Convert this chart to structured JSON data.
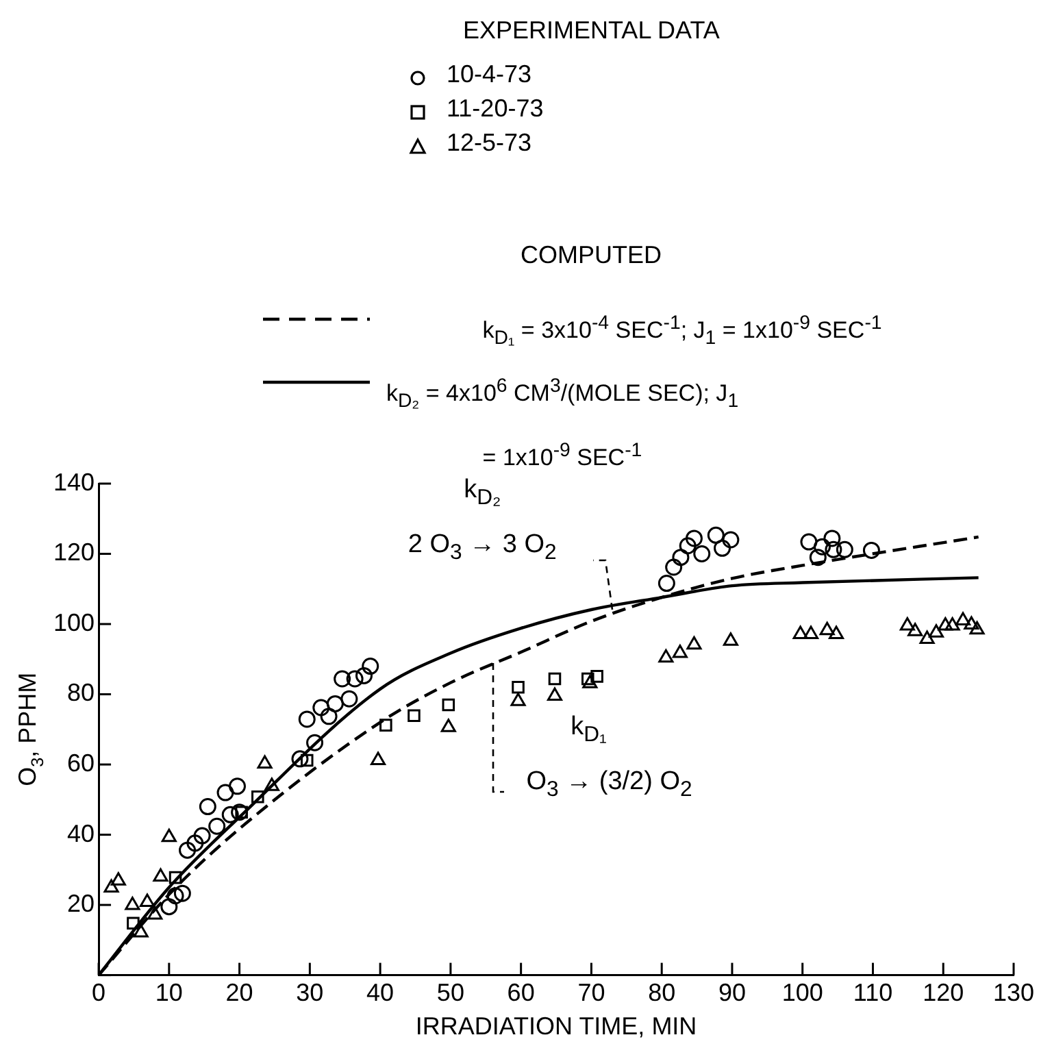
{
  "chart_data": {
    "type": "scatter",
    "legend_title": "EXPERIMENTAL DATA",
    "legend": "top",
    "grid": false,
    "xlabel": "IRRADIATION TIME, MIN",
    "ylabel": "O$_{3}$, PPHM",
    "xlim": [
      0,
      130
    ],
    "xticks": [
      0,
      10,
      20,
      30,
      40,
      50,
      60,
      70,
      80,
      90,
      100,
      110,
      120,
      130
    ],
    "ylim": [
      0,
      140
    ],
    "yticks": [
      {
        "value": 0,
        "label": null
      },
      20,
      40,
      60,
      80,
      100,
      120,
      140
    ],
    "annotations": [
      "COMPUTED",
      "k$_{D₂}$",
      {
        "text": "2 O$_{3}$ → 3 O$_{2}$",
        "x": 73,
        "y": 104
      },
      "k$_{D₁}$",
      {
        "text": "O$_{3}$ → (3/2) O$_{2}$",
        "x": 56,
        "y": 89
      }
    ],
    "series": [
      {
        "name": "10-4-73",
        "type": "scatter",
        "marker": "circle",
        "color": "#000000",
        "x": [
          10,
          10.9,
          11.9,
          12.6,
          13.7,
          14.7,
          15.5,
          16.8,
          18,
          19.7,
          18.7,
          20,
          28.6,
          30.7,
          29.6,
          31.6,
          32.7,
          33.6,
          35.6,
          34.6,
          36.4,
          37.7,
          38.6,
          80.7,
          81.7,
          82.7,
          83.7,
          84.6,
          85.7,
          87.7,
          88.6,
          89.8,
          100.9,
          102.2,
          102.8,
          104.2,
          104.4,
          106,
          109.8
        ],
        "values": [
          19.5,
          22.6,
          23.3,
          35.6,
          37.6,
          39.7,
          48,
          42.4,
          52,
          53.8,
          45.7,
          46.4,
          61.6,
          66.2,
          72.9,
          76.2,
          73.7,
          77.3,
          78.7,
          84.4,
          84.4,
          85.3,
          88,
          111.6,
          116.2,
          119,
          122.3,
          124.4,
          120,
          125.3,
          121.6,
          124,
          123.4,
          119,
          122,
          124.4,
          121.2,
          121.2,
          121
        ]
      },
      {
        "name": "11-20-73",
        "type": "scatter",
        "marker": "square",
        "color": "#000000",
        "x": [
          4.9,
          10.9,
          20.3,
          22.6,
          29.6,
          40.8,
          44.8,
          49.7,
          59.6,
          64.8,
          69.5,
          70.8
        ],
        "values": [
          14.8,
          27.8,
          46.4,
          50.8,
          61.2,
          71.2,
          73.9,
          77,
          82,
          84.4,
          84.4,
          85.1
        ]
      },
      {
        "name": "12-5-73",
        "type": "scatter",
        "marker": "triangle",
        "color": "#000000",
        "x": [
          1.8,
          2.8,
          4.8,
          6,
          6.9,
          8,
          8.8,
          10,
          23.6,
          24.6,
          39.7,
          49.7,
          59.6,
          64.8,
          69.8,
          80.6,
          82.6,
          84.6,
          89.8,
          99.7,
          101.2,
          103.5,
          104.8,
          114.9,
          116,
          117.7,
          119,
          120.3,
          121.3,
          122.8,
          124,
          124.8
        ],
        "values": [
          24.9,
          26.9,
          19.9,
          12.1,
          20.8,
          17.2,
          28,
          39.3,
          60.2,
          53.8,
          61.2,
          70.6,
          78,
          79.5,
          83.1,
          90.4,
          91.7,
          94.1,
          95.2,
          97.1,
          97.1,
          98.2,
          97.1,
          99.5,
          97.9,
          95.7,
          97.5,
          99.5,
          99.5,
          101,
          99.8,
          98.4
        ]
      },
      {
        "name": "k$_{D₁}$ = 3x10$^{-4}$ SEC$^{-1}$; J$_{1}$ = 1x10$^{-9}$ SEC$^{-1}$",
        "type": "line",
        "marker": "none",
        "line_style": "dashed",
        "color": "#000000",
        "x": [
          0,
          10,
          20,
          40,
          50,
          60,
          70,
          80,
          90,
          100,
          125
        ],
        "values": [
          0,
          23,
          41.7,
          72,
          83.3,
          92,
          100.8,
          107.6,
          113,
          116.7,
          124.8
        ]
      },
      {
        "name": "k$_{D₂}$ = 4x10$^{6}$ CM$^{3}$/(MOLE SEC); J$_{1}$ = 1x10$^{-9}$ SEC$^{-1}$",
        "type": "line",
        "marker": "none",
        "line_style": "solid",
        "color": "#000000",
        "x": [
          0,
          10,
          20,
          40,
          50,
          60,
          70,
          80,
          90,
          100,
          125
        ],
        "values": [
          0,
          25,
          45,
          81.5,
          91.7,
          98.8,
          104.1,
          107.6,
          110.9,
          111.8,
          113.2
        ]
      }
    ]
  }
}
